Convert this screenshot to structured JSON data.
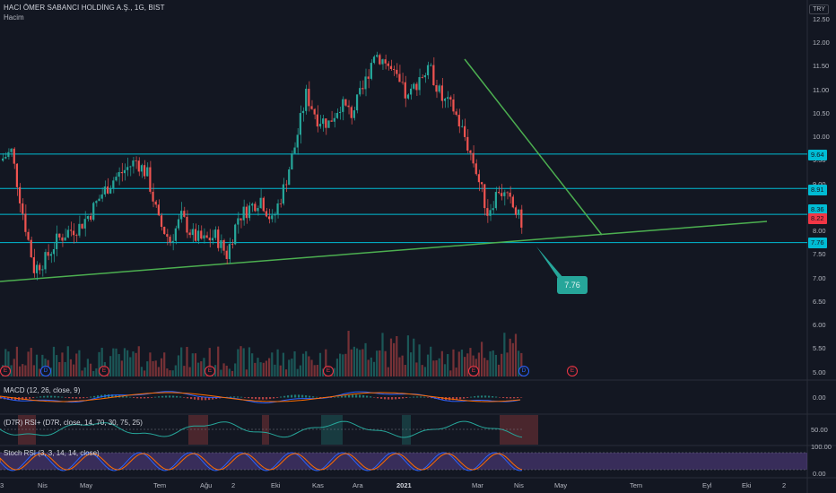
{
  "header": {
    "title": "HACI ÖMER SABANCI HOLDİNG A.Ş., 1G, BIST",
    "volume_label": "Hacim",
    "currency": "TRY"
  },
  "price_axis": [
    "12.50",
    "12.00",
    "11.50",
    "11.00",
    "10.50",
    "10.00",
    "9.50",
    "9.00",
    "8.50",
    "8.00",
    "7.50",
    "7.00",
    "6.50",
    "6.00",
    "5.50",
    "5.00"
  ],
  "price_tags": [
    {
      "label": "9.64",
      "color": "#00bcd4"
    },
    {
      "label": "8.91",
      "color": "#00bcd4"
    },
    {
      "label": "8.36",
      "color": "#00bcd4"
    },
    {
      "label": "8.22",
      "color": "#f23645"
    },
    {
      "label": "7.76",
      "color": "#00bcd4"
    }
  ],
  "callout": "7.76",
  "time_axis": [
    "3",
    "Nis",
    "May",
    "Tem",
    "Ağu",
    "2",
    "Eki",
    "Kas",
    "Ara",
    "2021",
    "Mar",
    "Nis",
    "May",
    "Tem",
    "Eyl",
    "Eki",
    "2"
  ],
  "events": [
    "E",
    "D",
    "E",
    "E",
    "E",
    "E",
    "D",
    "E"
  ],
  "indicators": {
    "macd": {
      "label": "MACD (12, 26, close, 9)",
      "axis": [
        "0.00"
      ]
    },
    "rsi": {
      "label": "(D7R) RSI+ (D7R, close, 14, 70, 30, 75, 25)",
      "axis": [
        "50.00"
      ]
    },
    "stoch": {
      "label": "Stoch RSI (3, 3, 14, 14, close)",
      "axis": [
        "100.00",
        "0.00"
      ]
    }
  },
  "chart_data": {
    "type": "candlestick",
    "title": "HACI ÖMER SABANCI HOLDİNG A.Ş., 1G, BIST",
    "ylim": [
      5.0,
      12.5
    ],
    "horizontal_levels": [
      9.64,
      8.91,
      8.36,
      7.76
    ],
    "last_price": 8.22,
    "close_path": [
      [
        "3",
        9.5
      ],
      [
        "3",
        9.7
      ],
      [
        "Nis",
        8.4
      ],
      [
        "Nis",
        7.2
      ],
      [
        "Nis",
        7.4
      ],
      [
        "Nis",
        7.8
      ],
      [
        "May",
        8.0
      ],
      [
        "May",
        8.1
      ],
      [
        "May",
        8.4
      ],
      [
        "May",
        8.8
      ],
      [
        "Tem",
        9.1
      ],
      [
        "Tem",
        9.3
      ],
      [
        "Tem",
        9.5
      ],
      [
        "Ağu",
        9.2
      ],
      [
        "Ağu",
        8.2
      ],
      [
        "Ağu",
        7.8
      ],
      [
        "Ağu",
        8.3
      ],
      [
        "Ağu",
        7.9
      ],
      [
        "2",
        7.8
      ],
      [
        "2",
        7.9
      ],
      [
        "Eki",
        7.5
      ],
      [
        "Eki",
        8.3
      ],
      [
        "Eki",
        8.5
      ],
      [
        "Eki",
        8.7
      ],
      [
        "Kas",
        8.2
      ],
      [
        "Kas",
        8.9
      ],
      [
        "Kas",
        9.8
      ],
      [
        "Kas",
        10.9
      ],
      [
        "Ara",
        10.4
      ],
      [
        "Ara",
        10.3
      ],
      [
        "Ara",
        10.7
      ],
      [
        "Ara",
        10.5
      ],
      [
        "2021",
        11.0
      ],
      [
        "2021",
        11.8
      ],
      [
        "2021",
        11.6
      ],
      [
        "2021",
        11.2
      ],
      [
        "2021",
        10.8
      ],
      [
        "2021",
        11.3
      ],
      [
        "Mar",
        11.4
      ],
      [
        "Mar",
        10.8
      ],
      [
        "Mar",
        10.6
      ],
      [
        "Mar",
        10.0
      ],
      [
        "Nis",
        9.3
      ],
      [
        "Nis",
        8.4
      ],
      [
        "Nis",
        8.9
      ],
      [
        "Nis",
        8.6
      ],
      [
        "Nis",
        8.2
      ]
    ]
  }
}
